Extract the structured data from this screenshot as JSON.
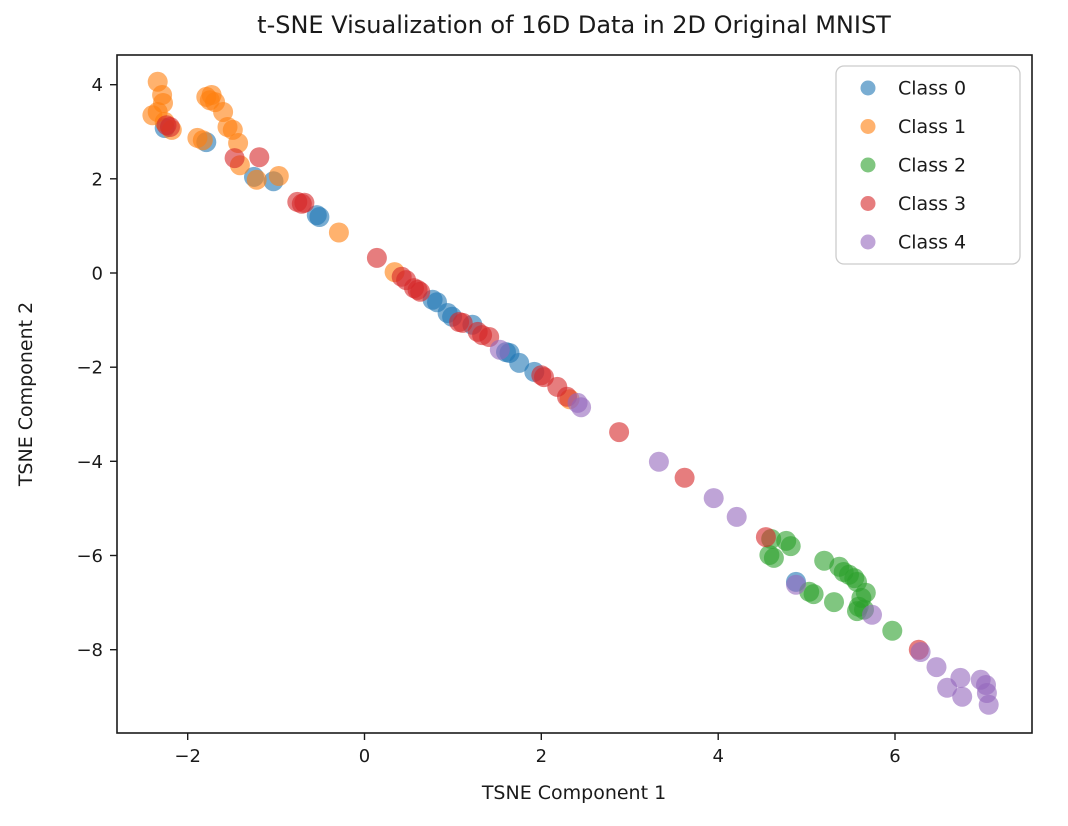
{
  "chart_data": {
    "type": "scatter",
    "title": "t-SNE Visualization of 16D Data in 2D Original MNIST",
    "xlabel": "TSNE Component 1",
    "ylabel": "TSNE Component 2",
    "xlim": [
      -2.8,
      7.55
    ],
    "ylim": [
      -9.77,
      4.63
    ],
    "xticks": [
      -2,
      0,
      2,
      4,
      6
    ],
    "yticks": [
      4,
      2,
      0,
      -2,
      -4,
      -6,
      -8
    ],
    "grid": false,
    "legend_position": "upper right",
    "marker_alpha": 0.6,
    "background_color": "#ffffff",
    "spine_color": "#1a1a1a",
    "legend_border_color": "#cccccc",
    "series": [
      {
        "name": "Class 0",
        "color": "#1f77b4",
        "points": [
          [
            -2.26,
            3.08
          ],
          [
            -1.79,
            2.78
          ],
          [
            -1.25,
            2.04
          ],
          [
            -1.03,
            1.95
          ],
          [
            -0.54,
            1.23
          ],
          [
            -0.51,
            1.19
          ],
          [
            0.77,
            -0.57
          ],
          [
            0.82,
            -0.62
          ],
          [
            0.94,
            -0.85
          ],
          [
            0.99,
            -0.93
          ],
          [
            1.22,
            -1.1
          ],
          [
            1.6,
            -1.68
          ],
          [
            1.64,
            -1.7
          ],
          [
            1.75,
            -1.91
          ],
          [
            1.92,
            -2.1
          ],
          [
            4.88,
            -6.56
          ]
        ]
      },
      {
        "name": "Class 1",
        "color": "#ff7f0e",
        "points": [
          [
            -2.34,
            4.06
          ],
          [
            -2.29,
            3.78
          ],
          [
            -2.28,
            3.61
          ],
          [
            -2.34,
            3.42
          ],
          [
            -2.4,
            3.35
          ],
          [
            -2.26,
            3.21
          ],
          [
            -2.18,
            3.04
          ],
          [
            -1.89,
            2.87
          ],
          [
            -1.83,
            2.82
          ],
          [
            -1.79,
            3.74
          ],
          [
            -1.75,
            3.67
          ],
          [
            -1.73,
            3.78
          ],
          [
            -1.69,
            3.63
          ],
          [
            -1.6,
            3.42
          ],
          [
            -1.55,
            3.1
          ],
          [
            -1.49,
            3.04
          ],
          [
            -1.43,
            2.76
          ],
          [
            -1.41,
            2.29
          ],
          [
            -1.22,
            1.98
          ],
          [
            -0.97,
            2.06
          ],
          [
            -0.29,
            0.86
          ],
          [
            0.34,
            0.02
          ],
          [
            2.32,
            -2.68
          ]
        ]
      },
      {
        "name": "Class 2",
        "color": "#2ca02c",
        "points": [
          [
            4.6,
            -5.65
          ],
          [
            4.77,
            -5.69
          ],
          [
            4.82,
            -5.8
          ],
          [
            4.58,
            -5.99
          ],
          [
            4.63,
            -6.05
          ],
          [
            5.2,
            -6.11
          ],
          [
            5.37,
            -6.24
          ],
          [
            5.42,
            -6.35
          ],
          [
            5.48,
            -6.41
          ],
          [
            5.54,
            -6.48
          ],
          [
            5.57,
            -6.56
          ],
          [
            5.03,
            -6.77
          ],
          [
            5.08,
            -6.82
          ],
          [
            5.31,
            -6.99
          ],
          [
            5.67,
            -6.79
          ],
          [
            5.62,
            -6.9
          ],
          [
            5.59,
            -7.09
          ],
          [
            5.65,
            -7.15
          ],
          [
            5.57,
            -7.18
          ],
          [
            5.97,
            -7.6
          ]
        ]
      },
      {
        "name": "Class 3",
        "color": "#d62728",
        "points": [
          [
            -2.24,
            3.14
          ],
          [
            -2.2,
            3.1
          ],
          [
            -1.47,
            2.44
          ],
          [
            -1.19,
            2.46
          ],
          [
            -0.76,
            1.51
          ],
          [
            -0.71,
            1.47
          ],
          [
            -0.68,
            1.49
          ],
          [
            0.14,
            0.32
          ],
          [
            0.42,
            -0.08
          ],
          [
            0.47,
            -0.15
          ],
          [
            0.56,
            -0.32
          ],
          [
            0.6,
            -0.36
          ],
          [
            0.63,
            -0.4
          ],
          [
            1.07,
            -1.04
          ],
          [
            1.11,
            -1.06
          ],
          [
            1.28,
            -1.25
          ],
          [
            1.33,
            -1.32
          ],
          [
            1.41,
            -1.36
          ],
          [
            2.0,
            -2.17
          ],
          [
            2.03,
            -2.21
          ],
          [
            2.18,
            -2.42
          ],
          [
            2.29,
            -2.63
          ],
          [
            2.88,
            -3.38
          ],
          [
            3.62,
            -4.35
          ],
          [
            4.54,
            -5.61
          ],
          [
            6.27,
            -8.0
          ]
        ]
      },
      {
        "name": "Class 4",
        "color": "#9467bd",
        "points": [
          [
            1.53,
            -1.63
          ],
          [
            2.41,
            -2.76
          ],
          [
            2.45,
            -2.85
          ],
          [
            3.33,
            -4.01
          ],
          [
            3.95,
            -4.78
          ],
          [
            4.21,
            -5.18
          ],
          [
            4.88,
            -6.62
          ],
          [
            5.74,
            -7.26
          ],
          [
            6.29,
            -8.05
          ],
          [
            6.47,
            -8.37
          ],
          [
            6.74,
            -8.6
          ],
          [
            6.97,
            -8.64
          ],
          [
            6.59,
            -8.81
          ],
          [
            6.76,
            -9.0
          ],
          [
            7.03,
            -8.75
          ],
          [
            7.04,
            -8.92
          ],
          [
            7.06,
            -9.17
          ]
        ]
      }
    ]
  }
}
